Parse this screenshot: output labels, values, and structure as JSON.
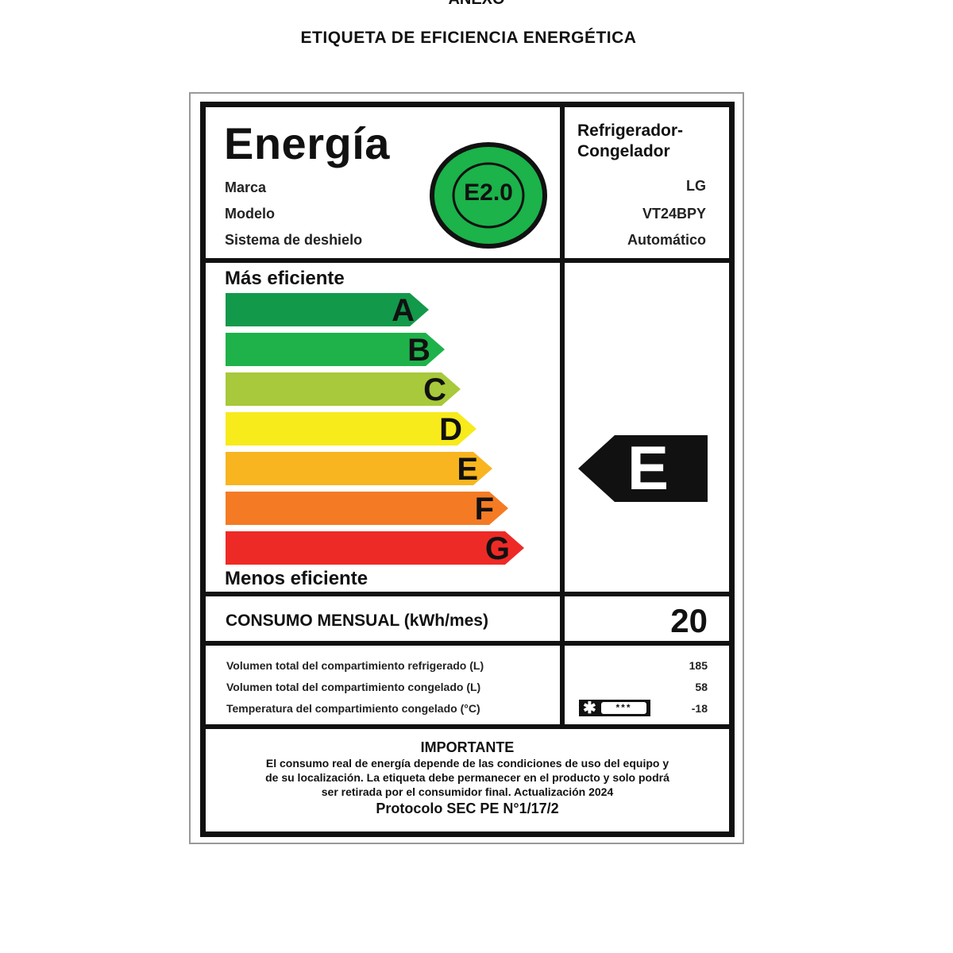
{
  "header": {
    "annex": "ANEXO",
    "title": "ETIQUETA DE EFICIENCIA ENERGÉTICA"
  },
  "label": {
    "heading": "Energía",
    "appliance_type": "Refrigerador-Congelador",
    "fields": [
      {
        "label": "Marca",
        "value": "LG"
      },
      {
        "label": "Modelo",
        "value": "VT24BPY"
      },
      {
        "label": "Sistema de deshielo",
        "value": "Automático"
      }
    ],
    "badge": {
      "text": "E2.0",
      "color": "#1bb34a"
    },
    "most_efficient": "Más eficiente",
    "least_efficient": "Menos eficiente",
    "classes": [
      {
        "letter": "A",
        "color": "#12994a"
      },
      {
        "letter": "B",
        "color": "#1fb24a"
      },
      {
        "letter": "C",
        "color": "#a7c93b"
      },
      {
        "letter": "D",
        "color": "#f7eb1c"
      },
      {
        "letter": "E",
        "color": "#f8b51f"
      },
      {
        "letter": "F",
        "color": "#f47b24"
      },
      {
        "letter": "G",
        "color": "#ee2a26"
      }
    ],
    "rating": "E",
    "consumption": {
      "label": "CONSUMO MENSUAL (kWh/mes)",
      "value": "20"
    },
    "specs": [
      {
        "label": "Volumen total del compartimiento refrigerado (L)",
        "value": "185"
      },
      {
        "label": "Volumen total del compartimiento congelado (L)",
        "value": "58"
      },
      {
        "label": "Temperatura del compartimiento congelado (°C)",
        "value": "-18",
        "stars": "***"
      }
    ],
    "important": {
      "title": "IMPORTANTE",
      "lines": [
        "El consumo real de energía depende de las condiciones de uso del equipo y",
        "de su localización. La etiqueta debe permanecer en el producto y solo podrá",
        "ser retirada por el consumidor final. Actualización 2024"
      ],
      "protocol": "Protocolo SEC PE N°1/17/2"
    }
  }
}
